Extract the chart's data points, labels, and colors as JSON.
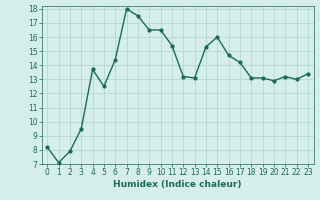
{
  "x": [
    0,
    1,
    2,
    3,
    4,
    5,
    6,
    7,
    8,
    9,
    10,
    11,
    12,
    13,
    14,
    15,
    16,
    17,
    18,
    19,
    20,
    21,
    22,
    23
  ],
  "y": [
    8.2,
    7.1,
    7.9,
    9.5,
    13.7,
    12.5,
    14.4,
    18.0,
    17.5,
    16.5,
    16.5,
    15.4,
    13.2,
    13.1,
    15.3,
    16.0,
    14.7,
    14.2,
    13.1,
    13.1,
    12.9,
    13.2,
    13.0,
    13.4
  ],
  "line_color": "#1a6b5a",
  "marker": "o",
  "marker_size": 2.0,
  "bg_color": "#d5eeeb",
  "grid_color": "#b0d4ce",
  "xlabel": "Humidex (Indice chaleur)",
  "ylim": [
    7,
    18
  ],
  "yticks": [
    7,
    8,
    9,
    10,
    11,
    12,
    13,
    14,
    15,
    16,
    17,
    18
  ],
  "xlim": [
    -0.5,
    23.5
  ],
  "xticks": [
    0,
    1,
    2,
    3,
    4,
    5,
    6,
    7,
    8,
    9,
    10,
    11,
    12,
    13,
    14,
    15,
    16,
    17,
    18,
    19,
    20,
    21,
    22,
    23
  ],
  "xlabel_fontsize": 6.5,
  "tick_fontsize": 5.5,
  "line_width": 1.0
}
